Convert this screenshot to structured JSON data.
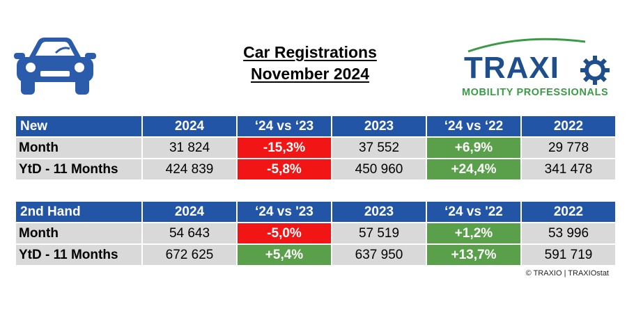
{
  "title": {
    "line1": "Car Registrations",
    "line2": "November 2024"
  },
  "logo": {
    "word": "TRAXI",
    "tagline": "MOBILITY PROFESSIONALS"
  },
  "colors": {
    "header_blue": "#2355a7",
    "negative_red": "#f21515",
    "positive_green": "#5aa04a",
    "cell_gray": "#d9d9d9",
    "logo_blue": "#1f4e8c",
    "logo_green": "#3a9a46"
  },
  "icons": {
    "left": "car-icon",
    "logo_gear": "gear-icon"
  },
  "tables": {
    "new": {
      "header": [
        "New",
        "2024",
        "‘24 vs ‘23",
        "2023",
        "‘24 vs ‘22",
        "2022"
      ],
      "rows": [
        {
          "label": "Month",
          "v2024": "31 824",
          "vs23": "-15,3%",
          "v2023": "37 552",
          "vs22": "+6,9%",
          "v2022": "29 778"
        },
        {
          "label": "YtD - 11 Months",
          "v2024": "424 839",
          "vs23": "-5,8%",
          "v2023": "450 960",
          "vs22": "+24,4%",
          "v2022": "341 478"
        }
      ]
    },
    "second_hand": {
      "header": [
        "2nd Hand",
        "2024",
        "‘24 vs '23",
        "2023",
        "‘24 vs '22",
        "2022"
      ],
      "rows": [
        {
          "label": "Month",
          "v2024": "54 643",
          "vs23": "-5,0%",
          "v2023": "57 519",
          "vs22": "+1,2%",
          "v2022": "53 996"
        },
        {
          "label": "YtD - 11 Months",
          "v2024": "672 625",
          "vs23": "+5,4%",
          "v2023": "637 950",
          "vs22": "+13,7%",
          "v2022": "591 719"
        }
      ]
    }
  },
  "credit": "© TRAXIO | TRAXIOstat"
}
